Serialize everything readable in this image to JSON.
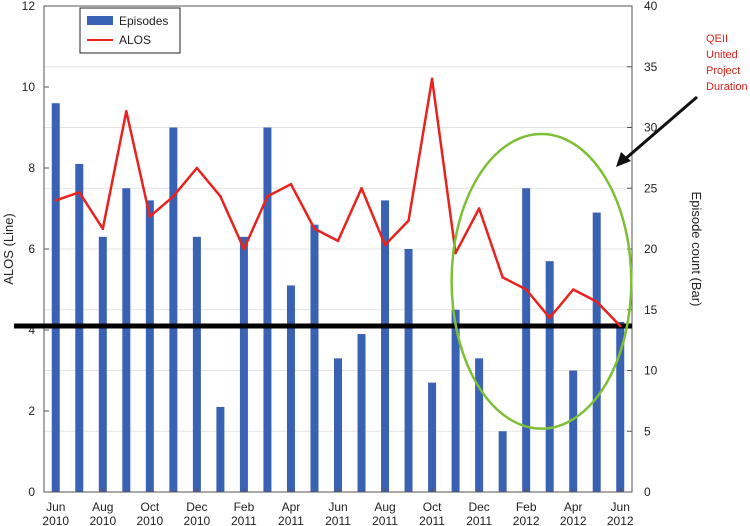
{
  "chart_data": {
    "type": "bar",
    "categories": [
      "Jun 2010",
      "Jul 2010",
      "Aug 2010",
      "Sep 2010",
      "Oct 2010",
      "Nov 2010",
      "Dec 2010",
      "Jan 2011",
      "Feb 2011",
      "Mar 2011",
      "Apr 2011",
      "May 2011",
      "Jun 2011",
      "Jul 2011",
      "Aug 2011",
      "Sep 2011",
      "Oct 2011",
      "Nov 2011",
      "Dec 2011",
      "Jan 2012",
      "Feb 2012",
      "Mar 2012",
      "Apr 2012",
      "May 2012",
      "Jun 2012"
    ],
    "x_tick_labels": [
      {
        "month": "Jun",
        "year": "2010"
      },
      {
        "month": "Aug",
        "year": "2010"
      },
      {
        "month": "Oct",
        "year": "2010"
      },
      {
        "month": "Dec",
        "year": "2010"
      },
      {
        "month": "Feb",
        "year": "2011"
      },
      {
        "month": "Apr",
        "year": "2011"
      },
      {
        "month": "Jun",
        "year": "2011"
      },
      {
        "month": "Aug",
        "year": "2011"
      },
      {
        "month": "Oct",
        "year": "2011"
      },
      {
        "month": "Dec",
        "year": "2011"
      },
      {
        "month": "Feb",
        "year": "2012"
      },
      {
        "month": "Apr",
        "year": "2012"
      },
      {
        "month": "Jun",
        "year": "2012"
      }
    ],
    "series": [
      {
        "name": "Episodes",
        "type": "bar",
        "axis": "right",
        "color": "#3a62b4",
        "values": [
          32,
          27,
          21,
          25,
          24,
          30,
          21,
          7,
          21,
          30,
          17,
          22,
          11,
          13,
          24,
          20,
          9,
          15,
          11,
          5,
          25,
          19,
          10,
          23,
          14
        ]
      },
      {
        "name": "ALOS",
        "type": "line",
        "axis": "left",
        "color": "#e8231e",
        "values": [
          7.2,
          7.4,
          6.5,
          9.4,
          6.8,
          7.3,
          8.0,
          7.3,
          6.0,
          7.3,
          7.6,
          6.5,
          6.2,
          7.5,
          6.1,
          6.7,
          10.2,
          5.9,
          7.0,
          5.3,
          5.0,
          4.3,
          5.0,
          4.7,
          4.1
        ]
      }
    ],
    "y_left": {
      "label": "ALOS (Line)",
      "lim": [
        0,
        12
      ],
      "ticks": [
        "0",
        "2",
        "4",
        "6",
        "8",
        "10",
        "12"
      ]
    },
    "y_right": {
      "label": "Episode count (Bar)",
      "lim": [
        0,
        40
      ],
      "ticks": [
        "0",
        "5",
        "10",
        "15",
        "20",
        "25",
        "30",
        "35",
        "40"
      ]
    },
    "reference_line": {
      "value": 4.1,
      "axis": "left",
      "color": "#000000"
    },
    "legend": {
      "placement": "top-left",
      "entries": [
        "Episodes",
        "ALOS"
      ]
    },
    "annotation": {
      "lines": [
        "QEII",
        "United",
        "Project",
        "Duration"
      ],
      "color": "#d9231d",
      "highlight_color": "#7dbf35",
      "arrow_color": "#111111"
    },
    "grid": true
  }
}
